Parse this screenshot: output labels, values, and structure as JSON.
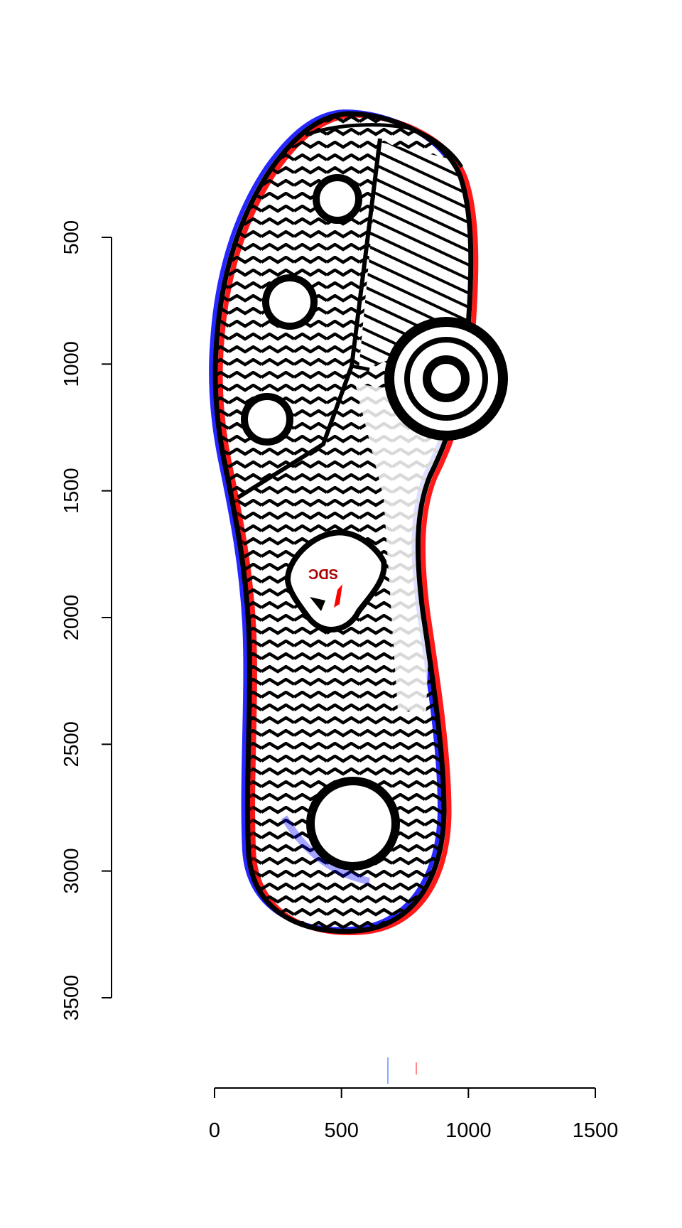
{
  "chart_data": {
    "type": "image",
    "title": "",
    "xlabel": "",
    "ylabel": "",
    "xlim": [
      0,
      1500
    ],
    "ylim": [
      3500,
      500
    ],
    "x_ticks": [
      0,
      500,
      1000,
      1500
    ],
    "y_ticks": [
      500,
      1000,
      1500,
      2000,
      2500,
      3000,
      3500
    ],
    "x_tick_labels": [
      "0",
      "500",
      "1000",
      "1500"
    ],
    "y_tick_labels": [
      "500",
      "1000",
      "1500",
      "2000",
      "2500",
      "3000",
      "3500"
    ],
    "image_description": "Shoe sole print with red/blue/black overlay",
    "sole_text": "SDC",
    "colors": {
      "ink": "#000000",
      "red": "#ff0000",
      "blue": "#0000ff"
    }
  }
}
